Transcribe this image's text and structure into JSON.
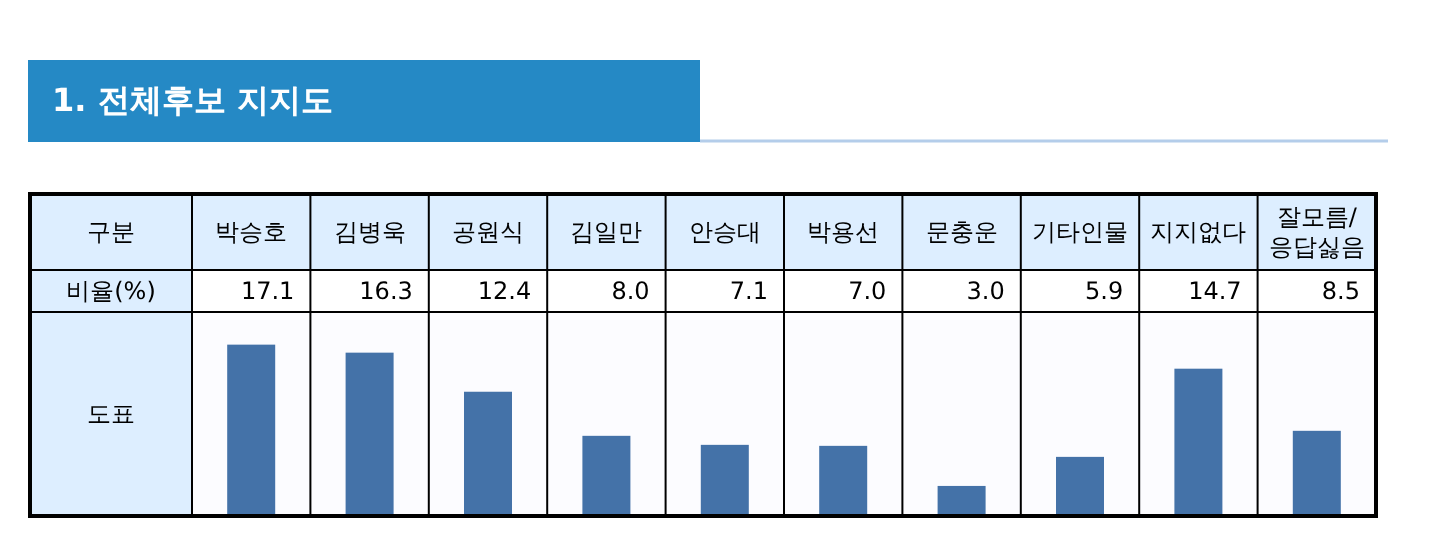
{
  "chart_data": {
    "type": "bar",
    "title": "1. 전체후보 지지도",
    "xlabel": "구분",
    "ylabel": "비율(%)",
    "annotations": [
      "도표"
    ],
    "categories": [
      "박승호",
      "김병욱",
      "공원식",
      "김일만",
      "안승대",
      "박용선",
      "문충운",
      "기타인물",
      "지지없다",
      "잘모름/응답싫음"
    ],
    "values": [
      17.1,
      16.3,
      12.4,
      8.0,
      7.1,
      7.0,
      3.0,
      5.9,
      14.7,
      8.5
    ],
    "value_labels": [
      "17.1",
      "16.3",
      "12.4",
      "8.0",
      "7.1",
      "7.0",
      "3.0",
      "5.9",
      "14.7",
      "8.5"
    ],
    "color": "#4472a8"
  }
}
